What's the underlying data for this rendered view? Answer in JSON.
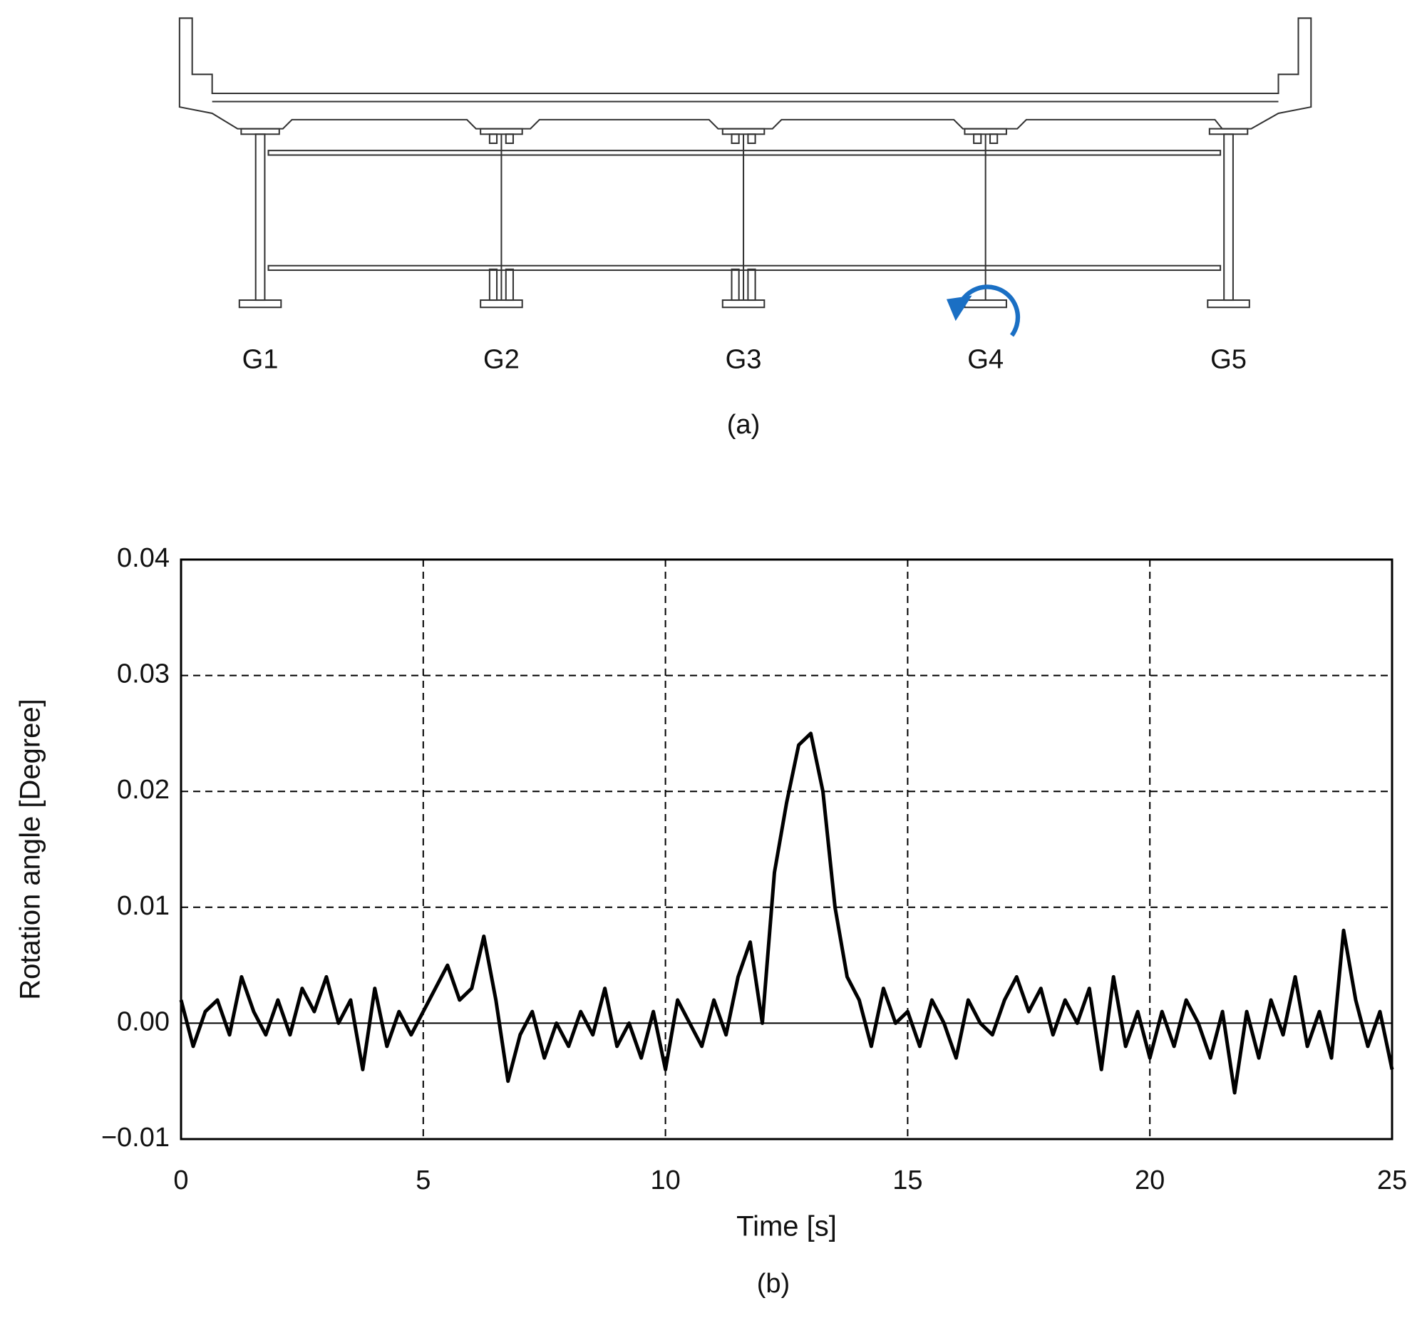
{
  "diagram": {
    "labels": [
      "G1",
      "G2",
      "G3",
      "G4",
      "G5"
    ],
    "caption": "(a)"
  },
  "chart_data": {
    "type": "line",
    "caption": "(b)",
    "xlabel": "Time [s]",
    "ylabel": "Rotation angle [Degree]",
    "x": [
      0,
      0.25,
      0.5,
      0.75,
      1,
      1.25,
      1.5,
      1.75,
      2,
      2.25,
      2.5,
      2.75,
      3,
      3.25,
      3.5,
      3.75,
      4,
      4.25,
      4.5,
      4.75,
      5,
      5.25,
      5.5,
      5.75,
      6,
      6.25,
      6.5,
      6.75,
      7,
      7.25,
      7.5,
      7.75,
      8,
      8.25,
      8.5,
      8.75,
      9,
      9.25,
      9.5,
      9.75,
      10,
      10.25,
      10.5,
      10.75,
      11,
      11.25,
      11.5,
      11.75,
      12,
      12.25,
      12.5,
      12.75,
      13,
      13.25,
      13.5,
      13.75,
      14,
      14.25,
      14.5,
      14.75,
      15,
      15.25,
      15.5,
      15.75,
      16,
      16.25,
      16.5,
      16.75,
      17,
      17.25,
      17.5,
      17.75,
      18,
      18.25,
      18.5,
      18.75,
      19,
      19.25,
      19.5,
      19.75,
      20,
      20.25,
      20.5,
      20.75,
      21,
      21.25,
      21.5,
      21.75,
      22,
      22.25,
      22.5,
      22.75,
      23,
      23.25,
      23.5,
      23.75,
      24,
      24.25,
      24.5,
      24.75,
      25
    ],
    "series": [
      {
        "color": "#000000",
        "values": [
          0.002,
          -0.002,
          0.001,
          0.002,
          -0.001,
          0.004,
          0.001,
          -0.001,
          0.002,
          -0.001,
          0.003,
          0.001,
          0.004,
          0,
          0.002,
          -0.004,
          0.003,
          -0.002,
          0.001,
          -0.001,
          0.001,
          0.003,
          0.005,
          0.002,
          0.003,
          0.0075,
          0.002,
          -0.005,
          -0.001,
          0.001,
          -0.003,
          0,
          -0.002,
          0.001,
          -0.001,
          0.003,
          -0.002,
          0,
          -0.003,
          0.001,
          -0.004,
          0.002,
          0,
          -0.002,
          0.002,
          -0.001,
          0.004,
          0.007,
          0,
          0.013,
          0.019,
          0.024,
          0.025,
          0.02,
          0.01,
          0.004,
          0.002,
          -0.002,
          0.003,
          0,
          0.001,
          -0.002,
          0.002,
          0,
          -0.003,
          0.002,
          0,
          -0.001,
          0.002,
          0.004,
          0.001,
          0.003,
          -0.001,
          0.002,
          0,
          0.003,
          -0.004,
          0.004,
          -0.002,
          0.001,
          -0.003,
          0.001,
          -0.002,
          0.002,
          0,
          -0.003,
          0.001,
          -0.006,
          0.001,
          -0.003,
          0.002,
          -0.001,
          0.004,
          -0.002,
          0.001,
          -0.003,
          0.008,
          0.002,
          -0.002,
          0.001,
          -0.004
        ]
      }
    ],
    "xlim": [
      0,
      25
    ],
    "xticks": [
      0,
      5,
      10,
      15,
      20,
      25
    ],
    "ylim": [
      -0.01,
      0.04
    ],
    "yticks": [
      {
        "value": -0.01,
        "label": "−0.01"
      },
      {
        "value": 0,
        "label": "0.00"
      },
      0.01,
      0.02,
      0.03,
      0.04
    ],
    "grid": true
  }
}
